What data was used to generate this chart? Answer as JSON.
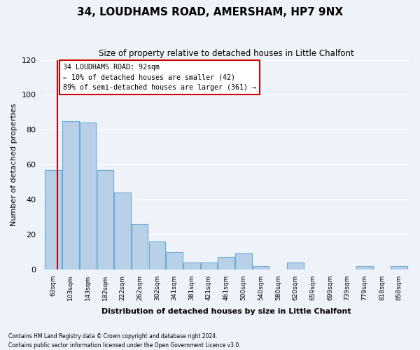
{
  "title": "34, LOUDHAMS ROAD, AMERSHAM, HP7 9NX",
  "subtitle": "Size of property relative to detached houses in Little Chalfont",
  "xlabel": "Distribution of detached houses by size in Little Chalfont",
  "ylabel": "Number of detached properties",
  "bar_labels": [
    "63sqm",
    "103sqm",
    "143sqm",
    "182sqm",
    "222sqm",
    "262sqm",
    "302sqm",
    "341sqm",
    "381sqm",
    "421sqm",
    "461sqm",
    "500sqm",
    "540sqm",
    "580sqm",
    "620sqm",
    "659sqm",
    "699sqm",
    "739sqm",
    "779sqm",
    "818sqm",
    "858sqm"
  ],
  "bar_heights": [
    57,
    85,
    84,
    57,
    44,
    26,
    16,
    10,
    4,
    4,
    7,
    9,
    2,
    0,
    4,
    0,
    0,
    0,
    2,
    0,
    2
  ],
  "bar_color": "#b8d0e8",
  "bar_edge_color": "#6aaad4",
  "ylim": [
    0,
    120
  ],
  "yticks": [
    0,
    20,
    40,
    60,
    80,
    100,
    120
  ],
  "marker_bar_index": 0,
  "marker_line_color": "#cc0000",
  "annotation_title": "34 LOUDHAMS ROAD: 92sqm",
  "annotation_line1": "← 10% of detached houses are smaller (42)",
  "annotation_line2": "89% of semi-detached houses are larger (361) →",
  "annotation_box_color": "#ffffff",
  "annotation_box_edge_color": "#cc0000",
  "footnote1": "Contains HM Land Registry data © Crown copyright and database right 2024.",
  "footnote2": "Contains public sector information licensed under the Open Government Licence v3.0.",
  "background_color": "#eef2f9",
  "grid_color": "#ffffff"
}
